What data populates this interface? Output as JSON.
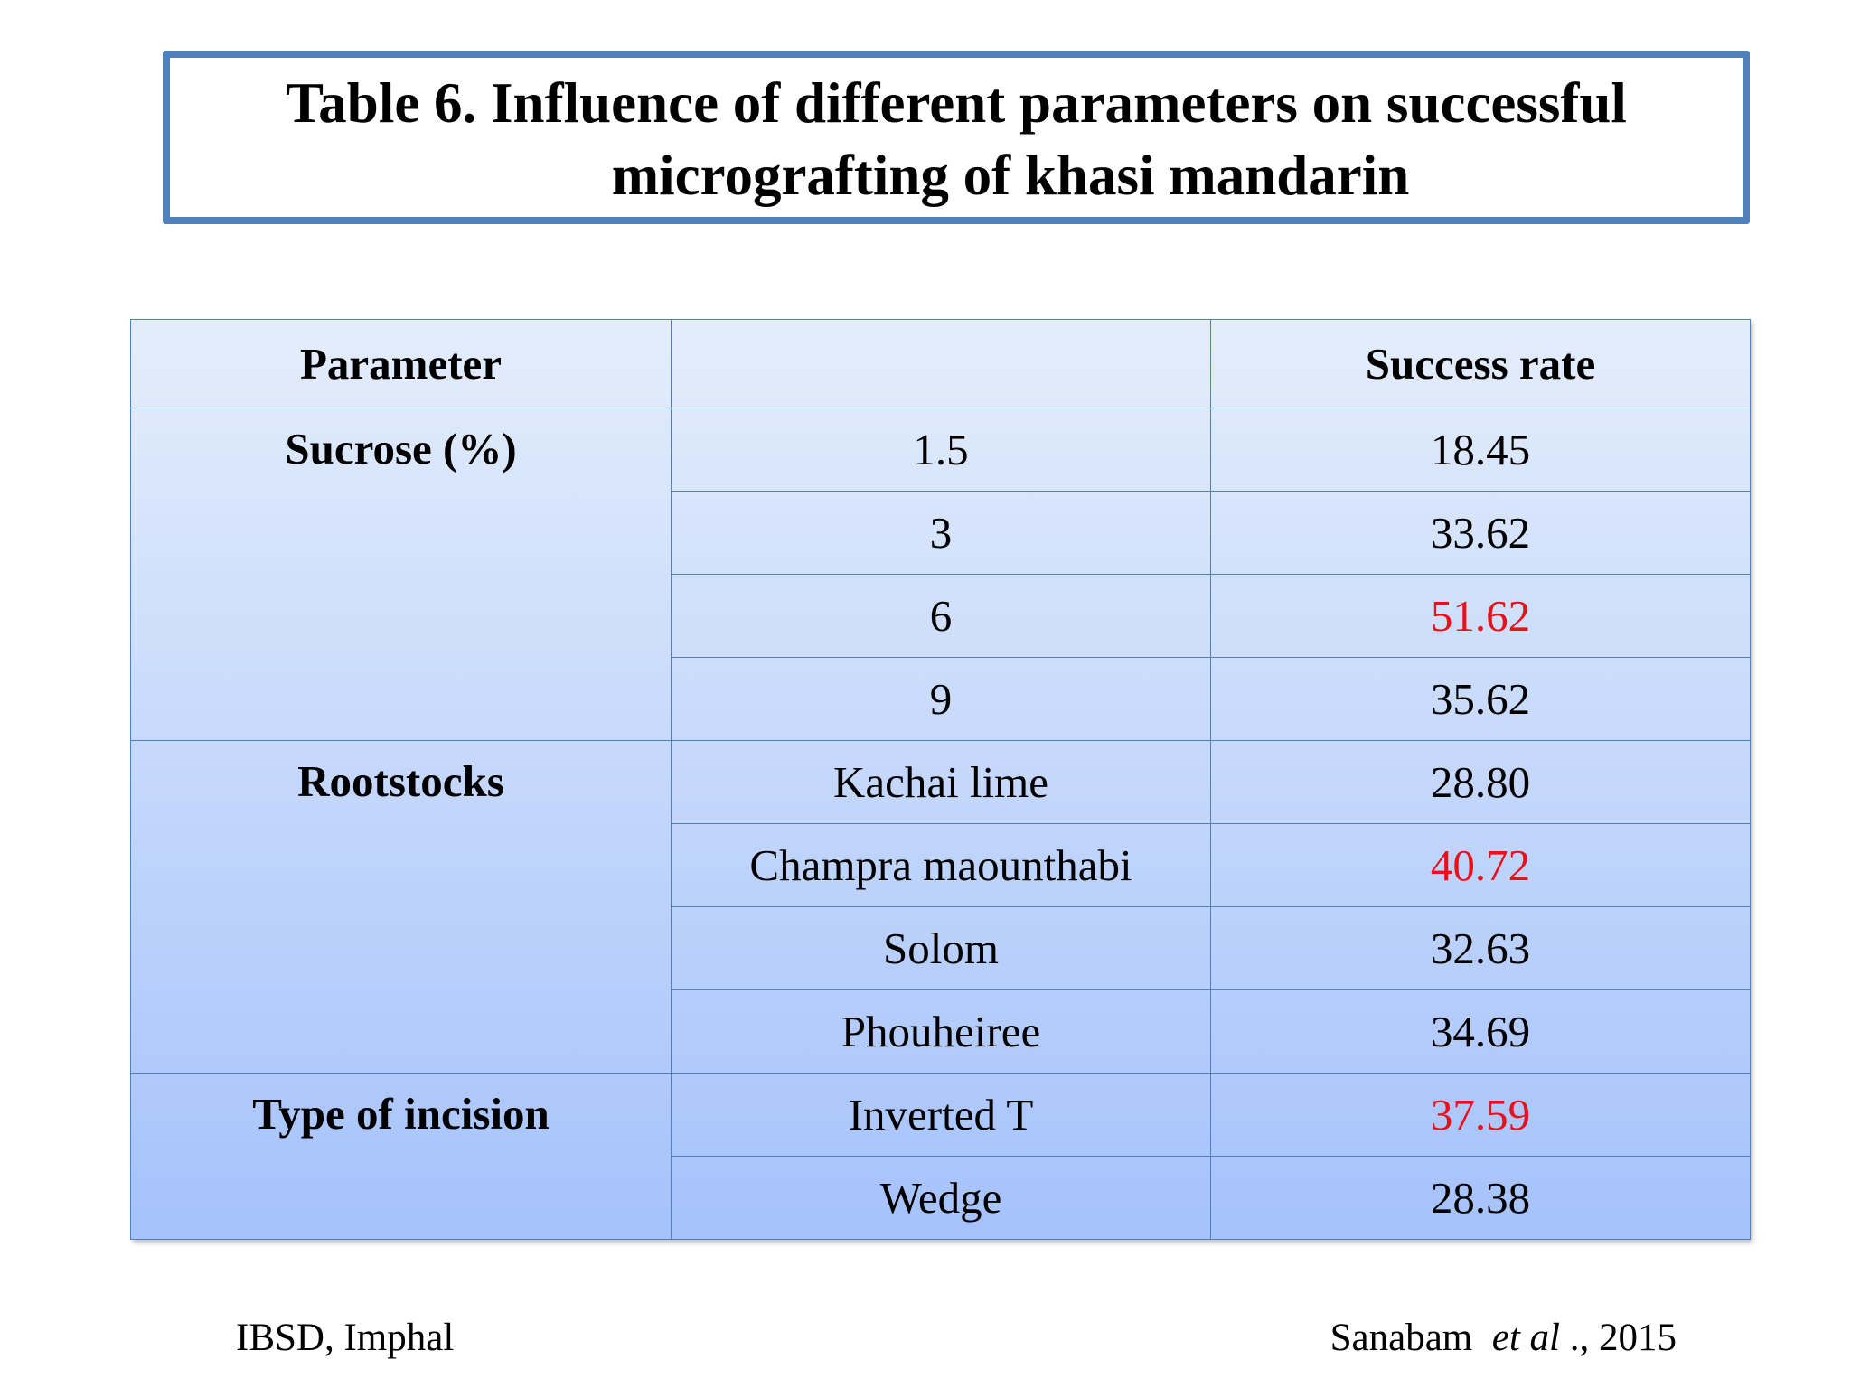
{
  "title": {
    "line1": "Table 6. Influence of different parameters on successful",
    "line2": "micrografting of khasi mandarin"
  },
  "table": {
    "header": {
      "parameter": "Parameter",
      "rate": "Success rate"
    },
    "groups": [
      {
        "name": "Sucrose (%)",
        "rows": [
          {
            "level": "1.5",
            "rate": "18.45",
            "highlight": false
          },
          {
            "level": "3",
            "rate": "33.62",
            "highlight": false
          },
          {
            "level": "6",
            "rate": "51.62",
            "highlight": true
          },
          {
            "level": "9",
            "rate": "35.62",
            "highlight": false
          }
        ]
      },
      {
        "name": "Rootstocks",
        "rows": [
          {
            "level": "Kachai lime",
            "rate": "28.80",
            "highlight": false
          },
          {
            "level": "Champra maounthabi",
            "rate": "40.72",
            "highlight": true
          },
          {
            "level": "Solom",
            "rate": "32.63",
            "highlight": false
          },
          {
            "level": "Phouheiree",
            "rate": "34.69",
            "highlight": false
          }
        ]
      },
      {
        "name": "Type of incision",
        "rows": [
          {
            "level": "Inverted T",
            "rate": "37.59",
            "highlight": true
          },
          {
            "level": "Wedge",
            "rate": "28.38",
            "highlight": false
          }
        ]
      }
    ]
  },
  "footer": {
    "left": "IBSD, Imphal",
    "author": "Sanabam",
    "etal": "et al",
    "year": "., 2015"
  }
}
